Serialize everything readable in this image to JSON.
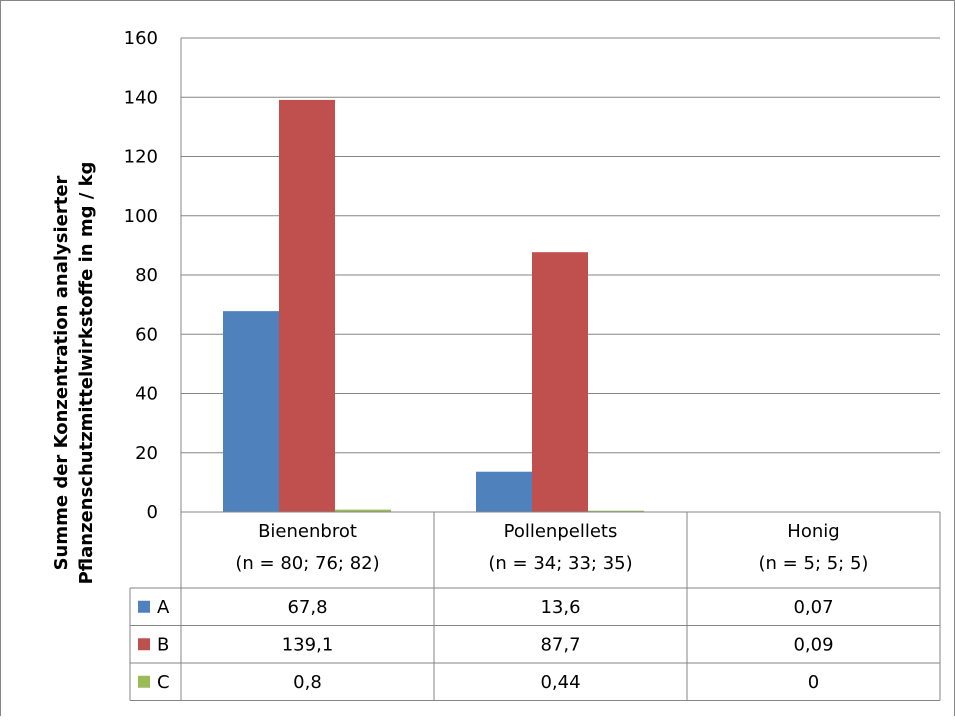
{
  "chart_data": {
    "type": "bar",
    "title": "",
    "ylabel": [
      "Summe der Konzentration analysierter",
      "Pflanzenschutzmittelwirkstoffe in mg / kg"
    ],
    "ylim": [
      0,
      160
    ],
    "yticks": [
      0,
      20,
      40,
      60,
      80,
      100,
      120,
      140,
      160
    ],
    "grid": true,
    "legend": "data-table-left",
    "categories": [
      {
        "name": "Bienenbrot",
        "n": "(n = 80; 76; 82)"
      },
      {
        "name": "Pollenpellets",
        "n": "(n = 34; 33; 35)"
      },
      {
        "name": "Honig",
        "n": "(n = 5; 5; 5)"
      }
    ],
    "series": [
      {
        "name": "A",
        "color": "#4F81BD",
        "values": [
          67.8,
          13.6,
          0.07
        ],
        "labels": [
          "67,8",
          "13,6",
          "0,07"
        ]
      },
      {
        "name": "B",
        "color": "#C0504D",
        "values": [
          139.1,
          87.7,
          0.09
        ],
        "labels": [
          "139,1",
          "87,7",
          "0,09"
        ]
      },
      {
        "name": "C",
        "color": "#9BBB59",
        "values": [
          0.8,
          0.44,
          0
        ],
        "labels": [
          "0,8",
          "0,44",
          "0"
        ]
      }
    ]
  }
}
